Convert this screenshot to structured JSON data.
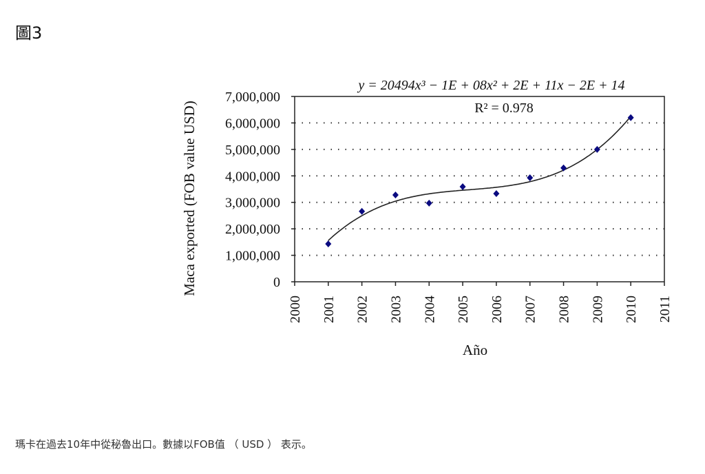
{
  "heading": "圖3",
  "caption": "瑪卡在過去10年中從秘魯出口。數據以FOB值 （ USD ） 表示。",
  "chart_data": {
    "type": "scatter",
    "title": "",
    "xlabel": "Año",
    "ylabel": "Maca exported (FOB value USD)",
    "xlim": [
      2000,
      2011
    ],
    "ylim": [
      0,
      7000000
    ],
    "x_ticks": [
      "2000",
      "2001",
      "2002",
      "2003",
      "2004",
      "2005",
      "2006",
      "2007",
      "2008",
      "2009",
      "2010",
      "2011"
    ],
    "y_ticks": [
      "0",
      "1,000,000",
      "2,000,000",
      "3,000,000",
      "4,000,000",
      "5,000,000",
      "6,000,000",
      "7,000,000"
    ],
    "grid": "horizontal dotted",
    "series": [
      {
        "name": "Maca exported",
        "marker": "diamond",
        "color": "#0a0a80",
        "x": [
          2001,
          2002,
          2003,
          2004,
          2005,
          2006,
          2007,
          2008,
          2009,
          2010
        ],
        "y": [
          1430000,
          2660000,
          3280000,
          2970000,
          3590000,
          3330000,
          3930000,
          4300000,
          5000000,
          6200000
        ]
      }
    ],
    "trendline": {
      "type": "polynomial",
      "order": 3,
      "color": "#111111"
    },
    "annotations": {
      "equation": "y = 20494x³ − 1E + 08x² + 2E + 11x − 2E + 14",
      "r_squared": "R² = 0.978"
    }
  }
}
